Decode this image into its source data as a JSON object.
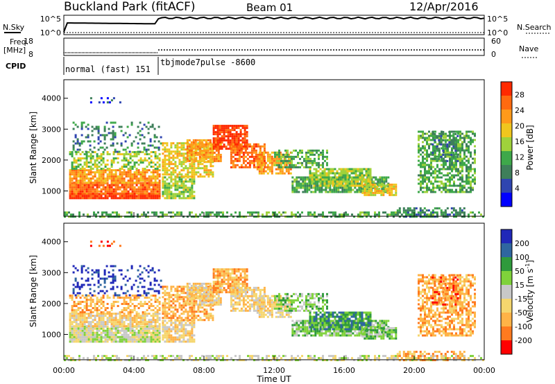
{
  "header": {
    "title": "Buckland Park (fitACF)",
    "beam": "Beam 01",
    "date": "12/Apr/2016"
  },
  "left_labels": {
    "nsky": "N.Sky",
    "freq": "Freq.",
    "freq_unit": "[MHz]",
    "cpid": "CPID"
  },
  "right_labels": {
    "nsearch": "N.Search",
    "nave": "Nave"
  },
  "nsky_ticks": [
    "10^5",
    "10^0"
  ],
  "freq_ticks": [
    "18",
    "8"
  ],
  "nave_ticks": [
    "60",
    "0"
  ],
  "cpid_segments": [
    {
      "label": "normal (fast) 151",
      "start_h": 0,
      "end_h": 5.6
    },
    {
      "label": "tbjmode7pulse -8600",
      "start_h": 5.6,
      "end_h": 24
    }
  ],
  "colors": {
    "power": [
      "#0000ff",
      "#2f45b0",
      "#3e7f5a",
      "#3ea84a",
      "#9fd23b",
      "#f0c61e",
      "#ff9a1a",
      "#ff6a10",
      "#ff2a00"
    ],
    "velocity": [
      "#2028b8",
      "#2f66a0",
      "#2f9a3c",
      "#7fd23a",
      "#c8c8c8",
      "#f5d66e",
      "#ffb347",
      "#ff7a1f",
      "#ff0000"
    ]
  },
  "chart_data": [
    {
      "type": "heatmap",
      "name": "power",
      "ylabel": "Slant Range [km]",
      "yticks": [
        "1000",
        "2000",
        "3000",
        "4000"
      ],
      "colorbar_label": "Power [dB]",
      "colorbar_ticks": [
        "4",
        "8",
        "12",
        "16",
        "20",
        "24",
        "28"
      ],
      "xlim_h": [
        0,
        24
      ],
      "ylim_km": [
        180,
        4600
      ]
    },
    {
      "type": "heatmap",
      "name": "velocity",
      "ylabel": "Slant Range [km]",
      "yticks": [
        "1000",
        "2000",
        "3000",
        "4000"
      ],
      "colorbar_label": "Velocity [m s",
      "colorbar_label_sup": "-1",
      "colorbar_label_end": "]",
      "colorbar_ticks": [
        "200",
        "100",
        "50",
        "15",
        "-15",
        "-50",
        "-100",
        "-200"
      ],
      "xlim_h": [
        0,
        24
      ],
      "ylim_km": [
        180,
        4600
      ]
    }
  ],
  "x_axis": {
    "label": "Time UT",
    "ticks": [
      "00:00",
      "04:00",
      "08:00",
      "12:00",
      "16:00",
      "20:00",
      "00:00"
    ]
  }
}
